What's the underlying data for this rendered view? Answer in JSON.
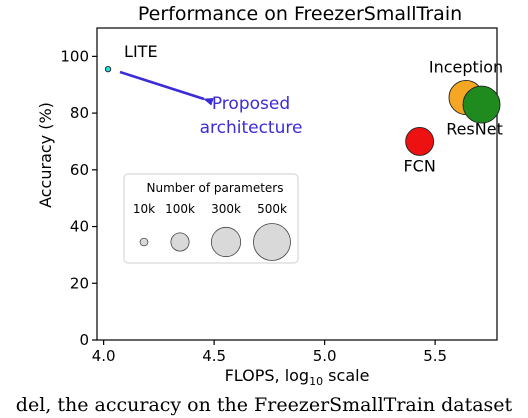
{
  "chart_data": {
    "type": "scatter",
    "title": "Performance on FreezerSmallTrain",
    "xlabel_main": "FLOPS, log",
    "xlabel_sub": "10",
    "xlabel_tail": " scale",
    "ylabel": "Accuracy (%)",
    "xlim": [
      3.97,
      5.78
    ],
    "ylim": [
      0,
      110
    ],
    "xticks": [
      "4.0",
      "4.5",
      "5.0",
      "5.5"
    ],
    "yticks": [
      "0",
      "20",
      "40",
      "60",
      "80",
      "100"
    ],
    "grid": false,
    "points": [
      {
        "label": "LITE",
        "x": 4.02,
        "y": 95.5,
        "params": 2600,
        "color": "#22e0d8"
      },
      {
        "label": "FCN",
        "x": 5.43,
        "y": 70.0,
        "params": 270000,
        "color": "#ee1111"
      },
      {
        "label": "Inception",
        "x": 5.64,
        "y": 85.5,
        "params": 420000,
        "color": "#f5a623"
      },
      {
        "label": "ResNet",
        "x": 5.71,
        "y": 83.0,
        "params": 500000,
        "color": "#1f8b1f"
      }
    ],
    "annotation": {
      "line1": "Proposed",
      "line2": "architecture",
      "color": "#3b2bd8"
    },
    "size_legend": {
      "title": "Number of parameters",
      "entries": [
        {
          "label": "10k",
          "params": 10000
        },
        {
          "label": "100k",
          "params": 100000
        },
        {
          "label": "300k",
          "params": 300000
        },
        {
          "label": "500k",
          "params": 500000
        }
      ]
    }
  },
  "caption": "del, the accuracy on the FreezerSmallTrain dataset"
}
